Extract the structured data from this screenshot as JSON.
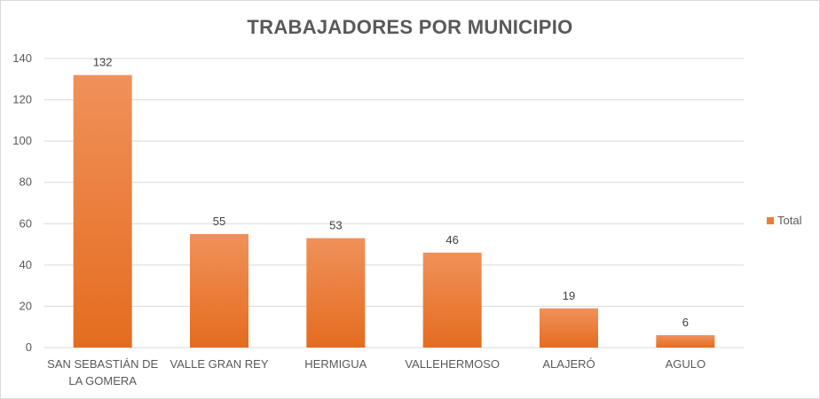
{
  "chart_data": {
    "type": "bar",
    "title": "TRABAJADORES POR MUNICIPIO",
    "categories": [
      [
        "SAN SEBASTIÁN DE",
        "LA GOMERA"
      ],
      [
        "VALLE GRAN REY"
      ],
      [
        "HERMIGUA"
      ],
      [
        "VALLEHERMOSO"
      ],
      [
        "ALAJERÓ"
      ],
      [
        "AGULO"
      ]
    ],
    "series": [
      {
        "name": "Total",
        "values": [
          132,
          55,
          53,
          46,
          19,
          6
        ],
        "color": "#ed7d31"
      }
    ],
    "ylim": [
      0,
      140
    ],
    "yticks": [
      0,
      20,
      40,
      60,
      80,
      100,
      120,
      140
    ],
    "grid": true,
    "legend_position": "right"
  }
}
